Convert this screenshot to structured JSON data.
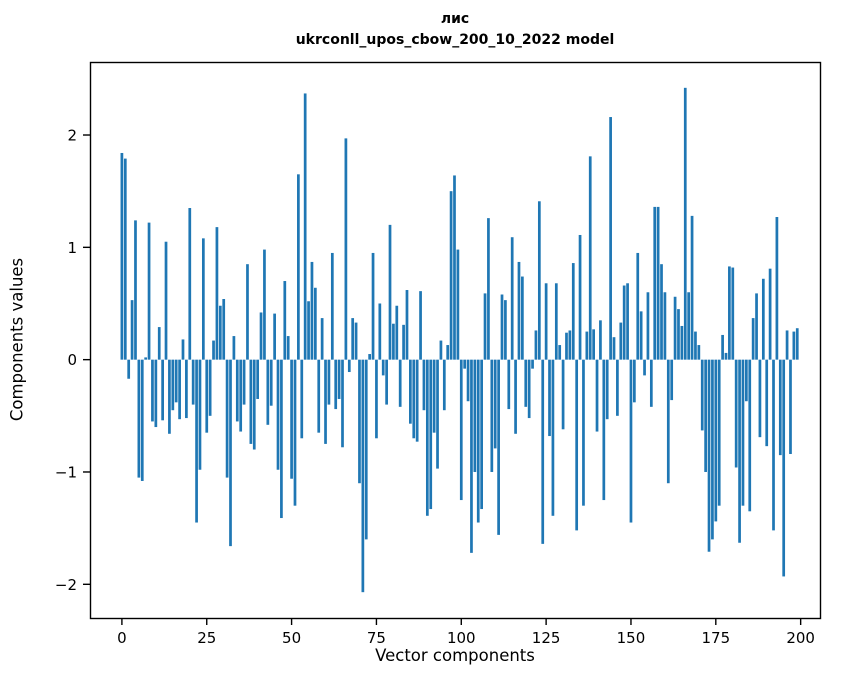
{
  "figure": {
    "title": "лис",
    "subtitle": "ukrconll_upos_cbow_200_10_2022 model"
  },
  "chart_data": {
    "type": "bar",
    "title": "лис",
    "subtitle": "ukrconll_upos_cbow_200_10_2022 model",
    "xlabel": "Vector components",
    "ylabel": "Components values",
    "bar_color": "#1f77b4",
    "axis_color": "#000000",
    "grid": false,
    "legend": "none",
    "x_ticks": [
      0,
      25,
      50,
      75,
      100,
      125,
      150,
      175,
      200
    ],
    "y_ticks": [
      -2,
      -1,
      0,
      1,
      2
    ],
    "xlim": [
      -9.4,
      205.7
    ],
    "ylim": [
      -2.3,
      2.65
    ],
    "n_components": 200,
    "values": [
      1.84,
      1.79,
      -0.17,
      0.53,
      1.24,
      -1.05,
      -1.08,
      0.02,
      1.22,
      -0.55,
      -0.6,
      0.29,
      -0.54,
      1.05,
      -0.66,
      -0.45,
      -0.38,
      -0.53,
      0.18,
      -0.52,
      1.35,
      -0.4,
      -1.45,
      -0.98,
      1.08,
      -0.65,
      -0.5,
      0.17,
      1.18,
      0.48,
      0.54,
      -1.05,
      -1.66,
      0.21,
      -0.55,
      -0.64,
      -0.4,
      0.85,
      -0.75,
      -0.8,
      -0.35,
      0.42,
      0.98,
      -0.58,
      -0.41,
      0.41,
      -0.98,
      -1.41,
      0.7,
      0.21,
      -1.06,
      -1.3,
      1.65,
      -0.7,
      2.37,
      0.52,
      0.87,
      0.64,
      -0.65,
      0.37,
      -0.75,
      -0.4,
      0.95,
      -0.44,
      -0.35,
      -0.78,
      1.97,
      -0.11,
      0.37,
      0.33,
      -1.1,
      -2.07,
      -1.6,
      0.05,
      0.95,
      -0.7,
      0.5,
      -0.14,
      -0.4,
      1.2,
      0.32,
      0.48,
      -0.42,
      0.31,
      0.62,
      -0.57,
      -0.7,
      -0.73,
      0.61,
      -0.45,
      -1.39,
      -1.33,
      -0.65,
      -0.97,
      0.17,
      -0.45,
      0.13,
      1.5,
      1.64,
      0.98,
      -1.25,
      -0.08,
      -0.37,
      -1.72,
      -1.0,
      -1.45,
      -1.33,
      0.59,
      1.26,
      -1.0,
      -0.79,
      -1.56,
      0.58,
      0.53,
      -0.44,
      1.09,
      -0.66,
      0.87,
      0.74,
      -0.42,
      -0.52,
      -0.08,
      0.26,
      1.41,
      -1.64,
      0.68,
      -0.68,
      -1.39,
      0.68,
      0.13,
      -0.62,
      0.24,
      0.26,
      0.86,
      -1.52,
      1.11,
      -1.3,
      0.25,
      1.81,
      0.27,
      -0.64,
      0.35,
      -1.25,
      -0.53,
      2.16,
      0.2,
      -0.5,
      0.33,
      0.66,
      0.68,
      -1.45,
      -0.38,
      0.95,
      0.43,
      -0.14,
      0.6,
      -0.42,
      1.36,
      1.36,
      0.85,
      0.6,
      -1.1,
      -0.36,
      0.56,
      0.45,
      0.3,
      2.42,
      0.6,
      1.28,
      0.25,
      0.13,
      -0.63,
      -1.0,
      -1.71,
      -1.6,
      -1.44,
      -1.3,
      0.22,
      0.06,
      0.83,
      0.82,
      -0.96,
      -1.63,
      -1.3,
      -0.37,
      -1.35,
      0.37,
      0.59,
      -0.69,
      0.72,
      -0.77,
      0.81,
      -1.52,
      1.27,
      -0.85,
      -1.93,
      0.26,
      -0.84,
      0.25,
      0.28
    ]
  }
}
